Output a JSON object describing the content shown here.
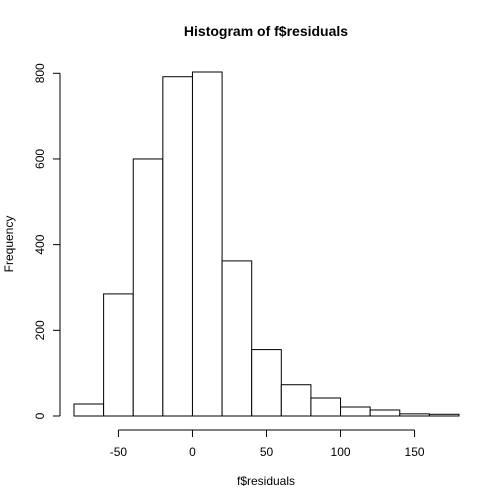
{
  "chart_data": {
    "type": "bar",
    "title": "Histogram of f$residuals",
    "xlabel": "f$residuals",
    "ylabel": "Frequency",
    "bins": [
      {
        "x0": -80,
        "x1": -60,
        "count": 28
      },
      {
        "x0": -60,
        "x1": -40,
        "count": 285
      },
      {
        "x0": -40,
        "x1": -20,
        "count": 600
      },
      {
        "x0": -20,
        "x1": 0,
        "count": 792
      },
      {
        "x0": 0,
        "x1": 20,
        "count": 803
      },
      {
        "x0": 20,
        "x1": 40,
        "count": 362
      },
      {
        "x0": 40,
        "x1": 60,
        "count": 155
      },
      {
        "x0": 60,
        "x1": 80,
        "count": 73
      },
      {
        "x0": 80,
        "x1": 100,
        "count": 42
      },
      {
        "x0": 100,
        "x1": 120,
        "count": 21
      },
      {
        "x0": 120,
        "x1": 140,
        "count": 14
      },
      {
        "x0": 140,
        "x1": 160,
        "count": 5
      },
      {
        "x0": 160,
        "x1": 180,
        "count": 4
      }
    ],
    "xticks": [
      -50,
      0,
      50,
      100,
      150
    ],
    "yticks": [
      0,
      200,
      400,
      600,
      800
    ],
    "xlim": [
      -80,
      180
    ],
    "ylim": [
      0,
      803
    ],
    "grid": false,
    "colors": {
      "bar_fill": "#ffffff",
      "bar_stroke": "#000000"
    }
  }
}
